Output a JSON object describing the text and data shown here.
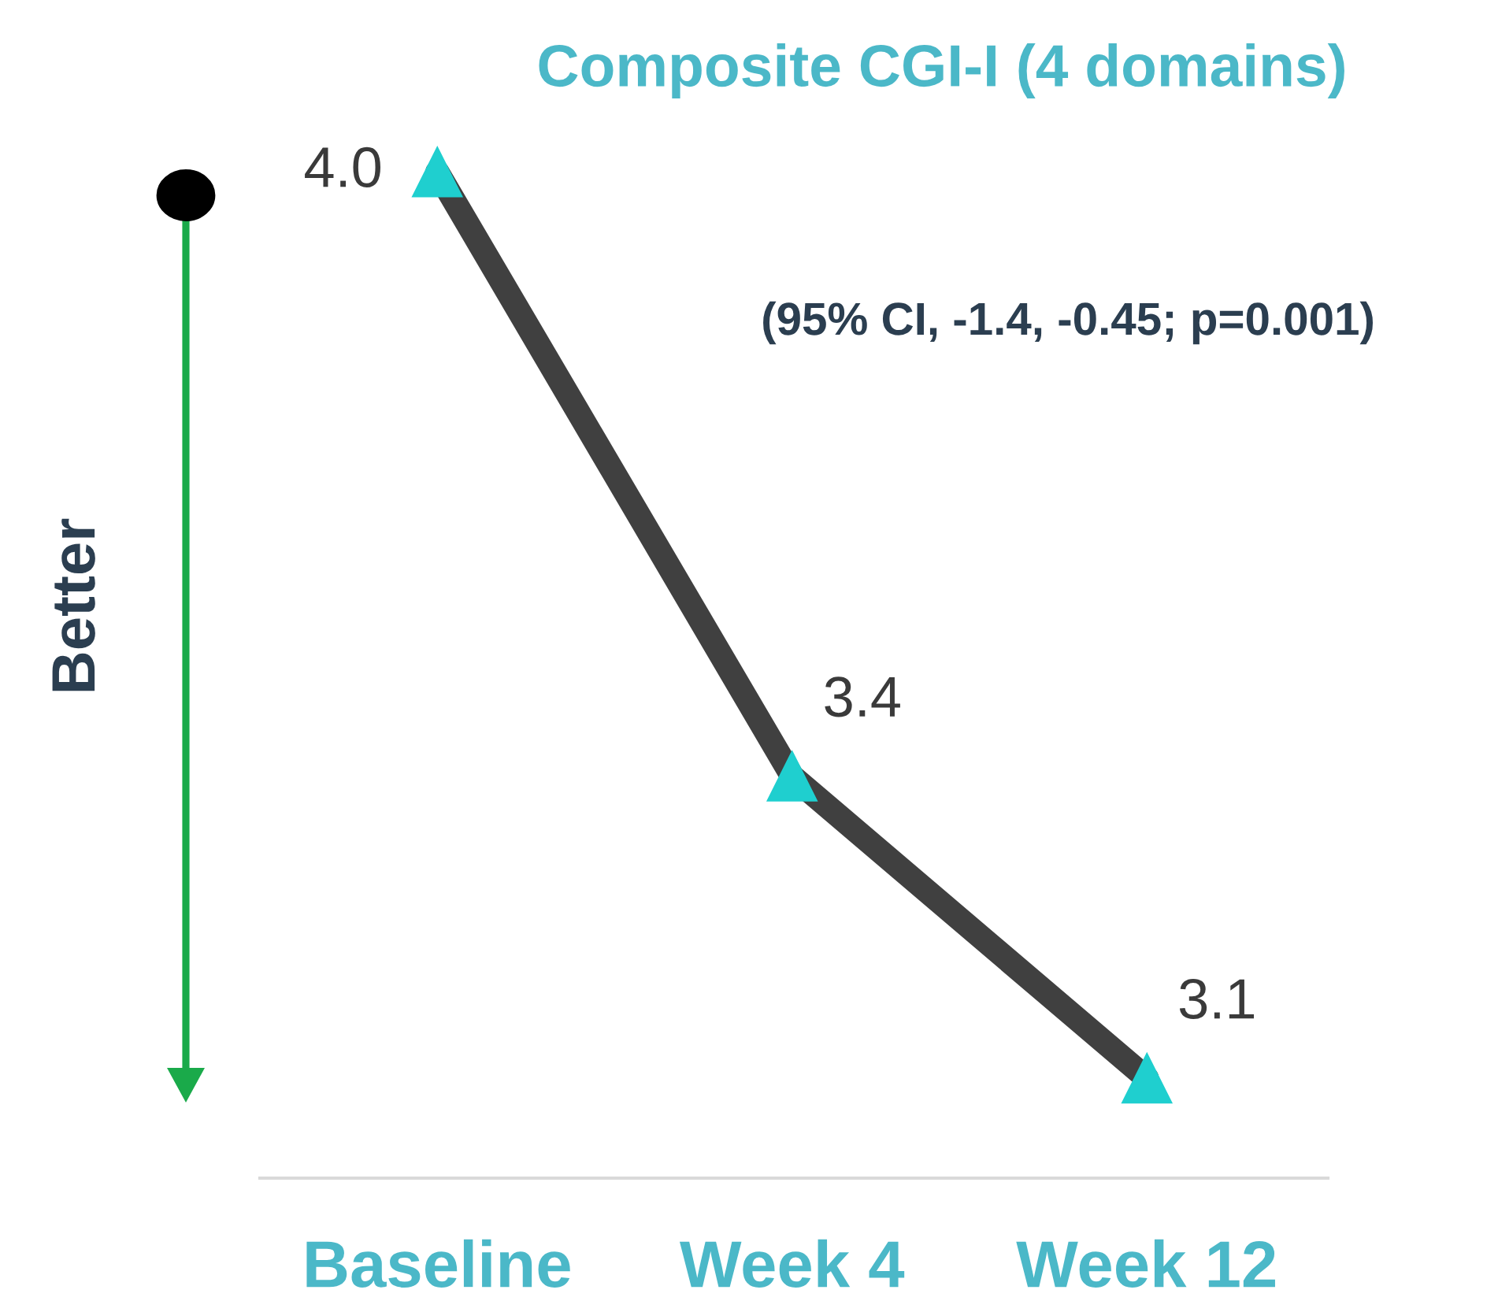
{
  "chart_data": {
    "type": "line",
    "title": "Composite CGI-I (4 domains)",
    "categories": [
      "Baseline",
      "Week 4",
      "Week 12"
    ],
    "series": [
      {
        "color": "#404040",
        "values": [
          4.0,
          3.4,
          3.1
        ],
        "value_labels": [
          "4.0",
          "3.4",
          "3.1"
        ]
      }
    ],
    "marker": "triangle",
    "tick_labels": "x",
    "grid": false,
    "legend": false,
    "annotations": [
      "(95% CI, -1.4, -0.45; p=0.001)",
      "Better"
    ]
  }
}
